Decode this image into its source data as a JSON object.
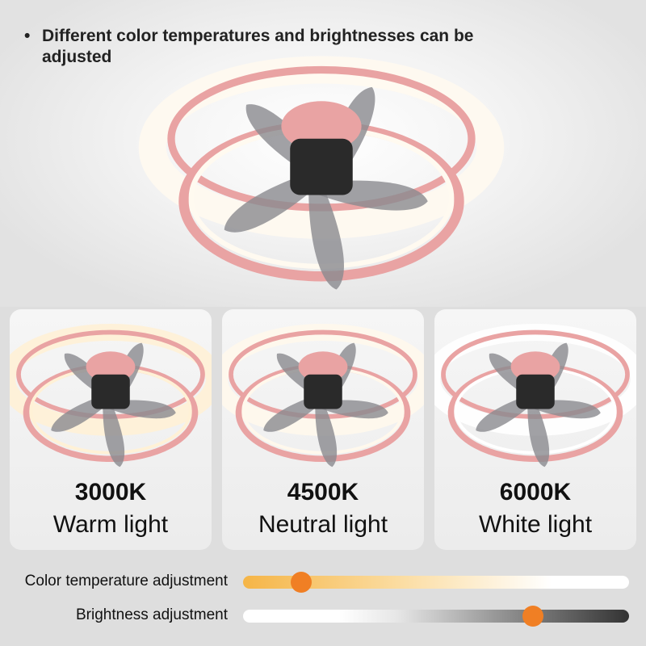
{
  "headline": {
    "bullet": "•",
    "text": "Different color temperatures and brightnesses can be adjusted"
  },
  "modes": [
    {
      "kelvin": "3000K",
      "name": "Warm light",
      "glow": "#fff1d6"
    },
    {
      "kelvin": "4500K",
      "name": "Neutral light",
      "glow": "#fff8ec"
    },
    {
      "kelvin": "6000K",
      "name": "White light",
      "glow": "#ffffff"
    }
  ],
  "sliders": {
    "color_temperature": {
      "label": "Color temperature adjustment",
      "value": 0.15
    },
    "brightness": {
      "label": "Brightness adjustment",
      "value": 0.75
    }
  },
  "colors": {
    "ring": "#e9a3a3",
    "thumb": "#f07f24",
    "blade": "#8a8a8e"
  }
}
